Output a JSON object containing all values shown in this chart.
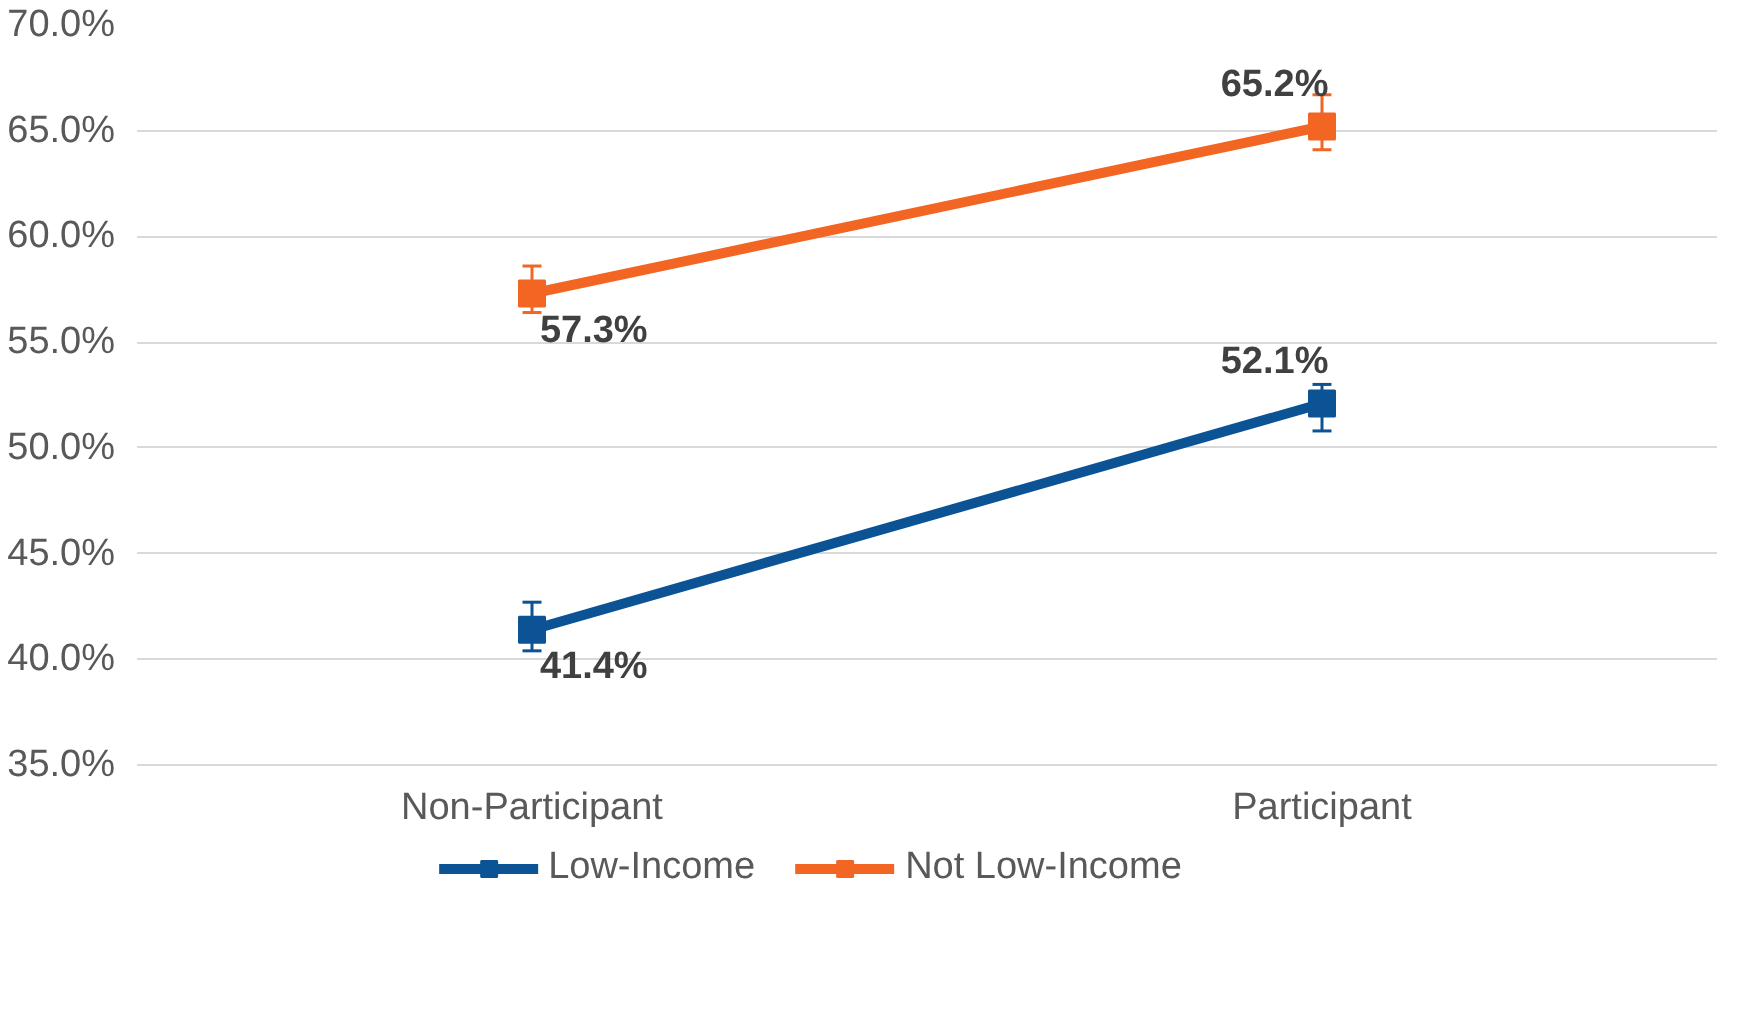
{
  "chart_data": {
    "type": "line",
    "categories": [
      "Non-Participant",
      "Participant"
    ],
    "series": [
      {
        "name": "Low-Income",
        "color": "#0b5394",
        "values": [
          41.4,
          52.1
        ],
        "errors": [
          [
            40.4,
            42.7
          ],
          [
            50.8,
            53.0
          ]
        ],
        "value_labels": [
          "41.4%",
          "52.1%"
        ]
      },
      {
        "name": "Not Low-Income",
        "color": "#f26522",
        "values": [
          57.3,
          65.2
        ],
        "errors": [
          [
            56.4,
            58.6
          ],
          [
            64.1,
            66.7
          ]
        ],
        "value_labels": [
          "57.3%",
          "65.2%"
        ]
      }
    ],
    "ylim": [
      35,
      70
    ],
    "yticks": [
      {
        "value": 35,
        "label": "35.0%"
      },
      {
        "value": 40,
        "label": "40.0%"
      },
      {
        "value": 45,
        "label": "45.0%"
      },
      {
        "value": 50,
        "label": "50.0%"
      },
      {
        "value": 55,
        "label": "55.0%"
      },
      {
        "value": 60,
        "label": "60.0%"
      },
      {
        "value": 65,
        "label": "65.0%"
      },
      {
        "value": 70,
        "label": "70.0%"
      }
    ],
    "grid": "y",
    "legend": "bottom",
    "marker": "square",
    "line_style": "solid"
  }
}
